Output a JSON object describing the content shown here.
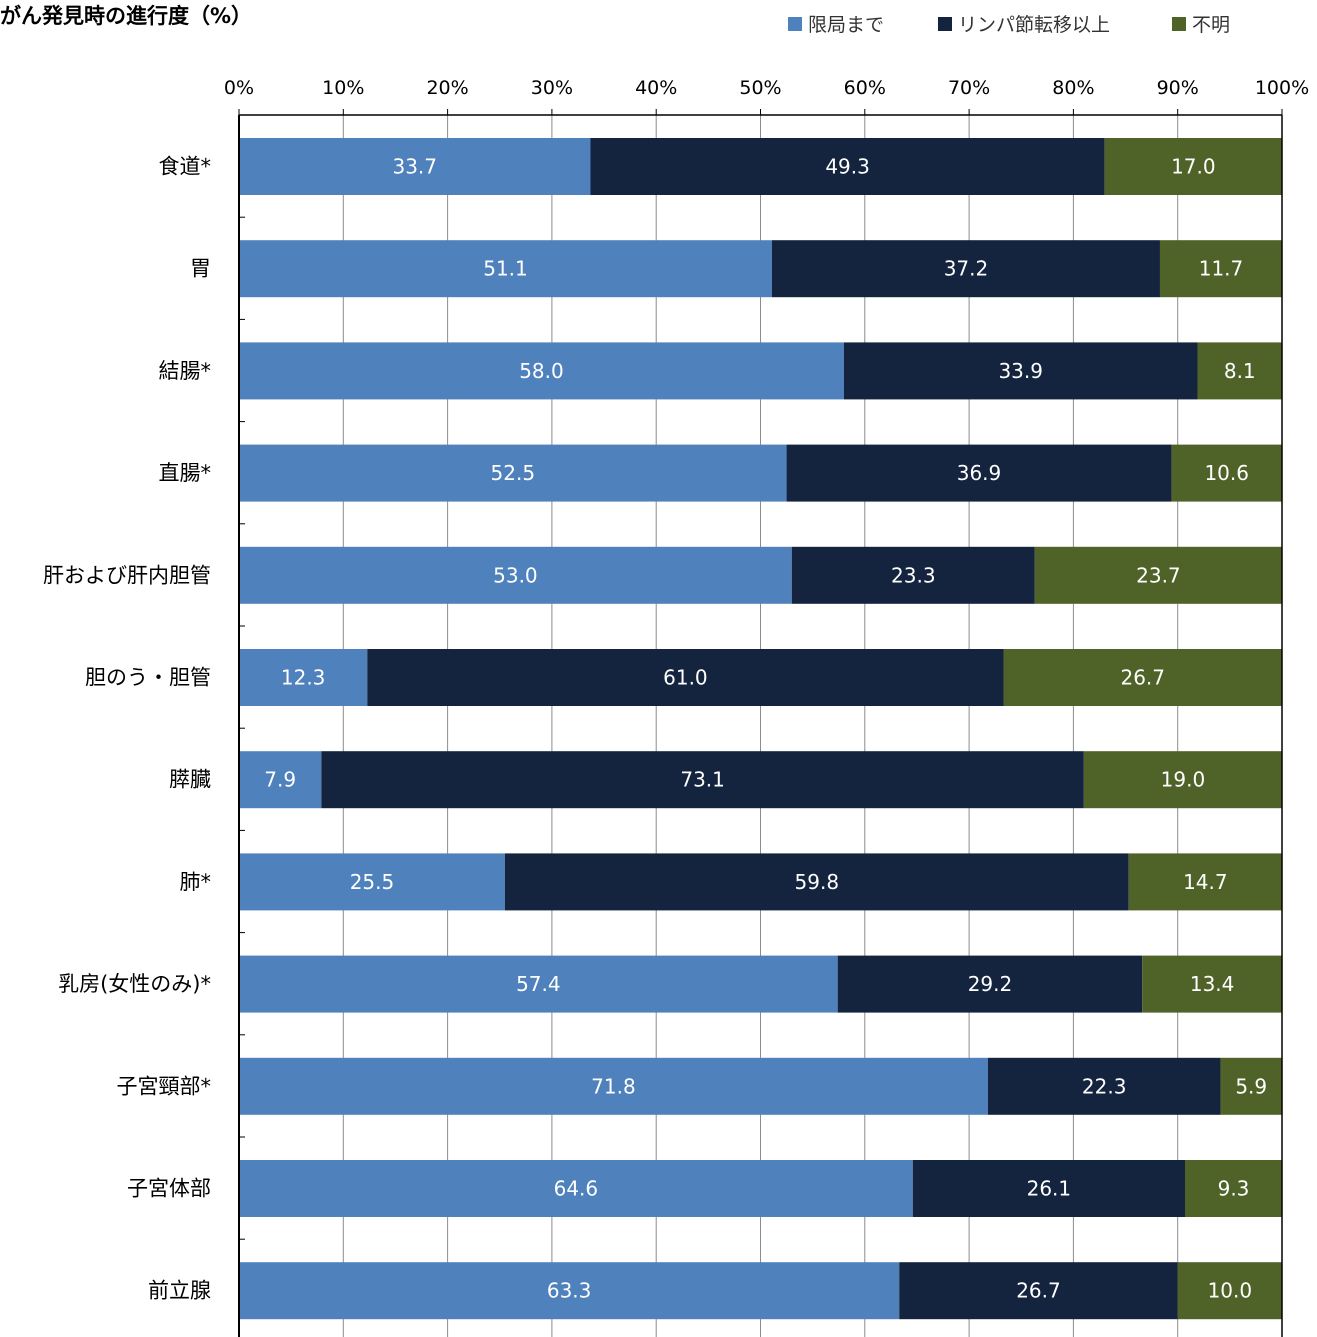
{
  "chart_data": {
    "type": "bar",
    "orientation": "horizontal",
    "stacked": true,
    "title": "がん発見時の進行度（%）",
    "xlabel": "",
    "ylabel": "",
    "xlim": [
      0,
      100
    ],
    "x_ticks": [
      "0%",
      "10%",
      "20%",
      "30%",
      "40%",
      "50%",
      "60%",
      "70%",
      "80%",
      "90%",
      "100%"
    ],
    "x_tick_values": [
      0,
      10,
      20,
      30,
      40,
      50,
      60,
      70,
      80,
      90,
      100
    ],
    "grid": true,
    "legend_position": "top-right",
    "categories": [
      "食道*",
      "胃",
      "結腸*",
      "直腸*",
      "肝および肝内胆管",
      "胆のう・胆管",
      "膵臓",
      "肺*",
      "乳房(女性のみ)*",
      "子宮頸部*",
      "子宮体部",
      "前立腺"
    ],
    "series": [
      {
        "name": "限局まで",
        "color": "#4f81bd",
        "values": [
          33.7,
          51.1,
          58.0,
          52.5,
          53.0,
          12.3,
          7.9,
          25.5,
          57.4,
          71.8,
          64.6,
          63.3
        ],
        "labels": [
          "33.7",
          "51.1",
          "58.0",
          "52.5",
          "53.0",
          "12.3",
          "7.9",
          "25.5",
          "57.4",
          "71.8",
          "64.6",
          "63.3"
        ]
      },
      {
        "name": "リンパ節転移以上",
        "color": "#14243e",
        "values": [
          49.3,
          37.2,
          33.9,
          36.9,
          23.3,
          61.0,
          73.1,
          59.8,
          29.2,
          22.3,
          26.1,
          26.7
        ],
        "labels": [
          "49.3",
          "37.2",
          "33.9",
          "36.9",
          "23.3",
          "61.0",
          "73.1",
          "59.8",
          "29.2",
          "22.3",
          "26.1",
          "26.7"
        ]
      },
      {
        "name": "不明",
        "color": "#4f6228",
        "values": [
          17.0,
          11.7,
          8.1,
          10.6,
          23.7,
          26.7,
          19.0,
          14.7,
          13.4,
          5.9,
          9.3,
          10.0
        ],
        "labels": [
          "17.0",
          "11.7",
          "8.1",
          "10.6",
          "23.7",
          "26.7",
          "19.0",
          "14.7",
          "13.4",
          "5.9",
          "9.3",
          "10.0"
        ]
      }
    ]
  }
}
